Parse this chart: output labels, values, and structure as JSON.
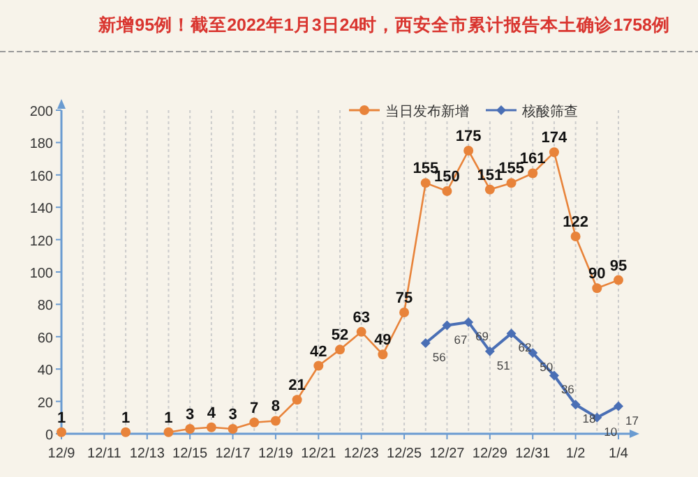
{
  "chart_data": {
    "type": "line",
    "title": "新增95例！截至2022年1月3日24时，西安全市累计报告本土确诊1758例",
    "categories": [
      "12/9",
      null,
      "12/11",
      null,
      "12/13",
      null,
      "12/15",
      null,
      "12/17",
      null,
      "12/19",
      null,
      "12/21",
      null,
      "12/23",
      null,
      "12/25",
      null,
      "12/27",
      null,
      "12/29",
      null,
      "12/31",
      null,
      "1/2",
      null,
      "1/4"
    ],
    "series": [
      {
        "name": "当日发布新增",
        "color": "#e8833a",
        "marker": "circle",
        "values": [
          1,
          null,
          null,
          1,
          null,
          1,
          3,
          4,
          3,
          7,
          8,
          21,
          42,
          52,
          63,
          49,
          75,
          155,
          150,
          175,
          151,
          155,
          161,
          174,
          122,
          90,
          95
        ]
      },
      {
        "name": "核酸筛查",
        "color": "#4a6fb5",
        "marker": "diamond",
        "values": [
          null,
          null,
          null,
          null,
          null,
          null,
          null,
          null,
          null,
          null,
          null,
          null,
          null,
          null,
          null,
          null,
          null,
          56,
          67,
          69,
          51,
          62,
          50,
          36,
          18,
          10,
          17
        ]
      }
    ],
    "ylim": [
      0,
      200
    ],
    "yticks": [
      0,
      20,
      40,
      60,
      80,
      100,
      120,
      140,
      160,
      180,
      200
    ],
    "grid": "x",
    "legend": "top",
    "data_labels": true,
    "line_style": "solid"
  }
}
